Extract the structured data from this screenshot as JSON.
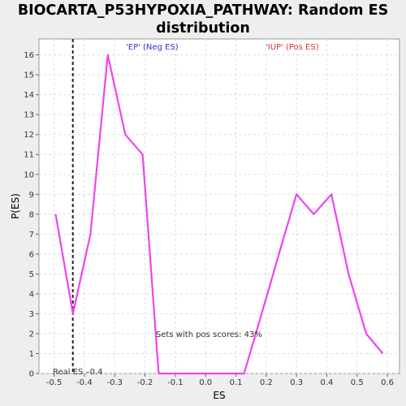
{
  "chart_data": {
    "type": "line",
    "title_line1": "BIOCARTA_P53HYPOXIA_PATHWAY: Random ES",
    "title_line2": "distribution",
    "xlabel": "ES",
    "ylabel": "P(ES)",
    "xlim": [
      -0.55,
      0.64
    ],
    "ylim": [
      0,
      16.8
    ],
    "xticks": [
      -0.5,
      -0.4,
      -0.3,
      -0.2,
      -0.1,
      0.0,
      0.1,
      0.2,
      0.3,
      0.4,
      0.5,
      0.6
    ],
    "xtick_labels": [
      "-0.5",
      "-0.4",
      "-0.3",
      "-0.2",
      "-0.1",
      "0.0",
      "0.1",
      "0.2",
      "0.3",
      "0.4",
      "0.5",
      "0.6"
    ],
    "yticks": [
      0,
      1,
      2,
      3,
      4,
      5,
      6,
      7,
      8,
      9,
      10,
      11,
      12,
      13,
      14,
      15,
      16
    ],
    "grid": true,
    "series": [
      {
        "color": "#ee44ee",
        "x": [
          -0.495,
          -0.438,
          -0.38,
          -0.323,
          -0.265,
          -0.208,
          -0.155,
          -0.1,
          -0.045,
          0.012,
          0.07,
          0.127,
          0.185,
          0.242,
          0.3,
          0.357,
          0.415,
          0.472,
          0.53,
          0.585
        ],
        "y": [
          8,
          3,
          7,
          16,
          12,
          11,
          0,
          0,
          0,
          0,
          0,
          0,
          3,
          6,
          9,
          8,
          9,
          5,
          2,
          1
        ]
      }
    ],
    "real_es": -0.4383,
    "annotations": {
      "neg_label": "'EP' (Neg ES)",
      "pos_label": "'IUP' (Pos ES)",
      "pos_scores": "Sets with pos scores: 43%",
      "real_es_label": "Real ES –0.4"
    },
    "colors": {
      "neg_label": "#3333cc",
      "pos_label": "#dd3333",
      "line": "#ee44ee",
      "grid": "#dddddd"
    }
  }
}
